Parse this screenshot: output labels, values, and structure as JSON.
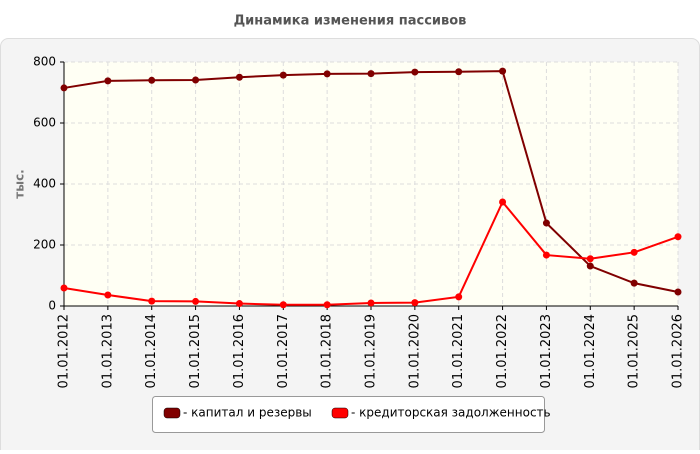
{
  "chart_data": {
    "type": "line",
    "title": "Динамика изменения пассивов",
    "y_label": "тыс.",
    "categories": [
      "01.01.2012",
      "01.01.2013",
      "01.01.2014",
      "01.01.2015",
      "01.01.2016",
      "01.01.2017",
      "01.01.2018",
      "01.01.2019",
      "01.01.2020",
      "01.01.2021",
      "01.01.2022",
      "01.01.2023",
      "01.01.2024",
      "01.01.2025",
      "01.01.2026"
    ],
    "series": [
      {
        "name": "- капитал и резервы",
        "color": "#800000",
        "values": [
          715,
          738,
          740,
          741,
          750,
          757,
          761,
          762,
          767,
          768,
          770,
          272,
          131,
          75,
          46
        ]
      },
      {
        "name": "- кредиторская задолженность",
        "color": "#ff0000",
        "values": [
          59,
          36,
          16,
          15,
          8,
          4,
          4,
          10,
          11,
          30,
          341,
          167,
          155,
          176,
          227
        ]
      }
    ],
    "ylim": [
      0,
      800
    ],
    "yticks": [
      0,
      200,
      400,
      600,
      800
    ],
    "grid": true,
    "legend": "bottom"
  }
}
